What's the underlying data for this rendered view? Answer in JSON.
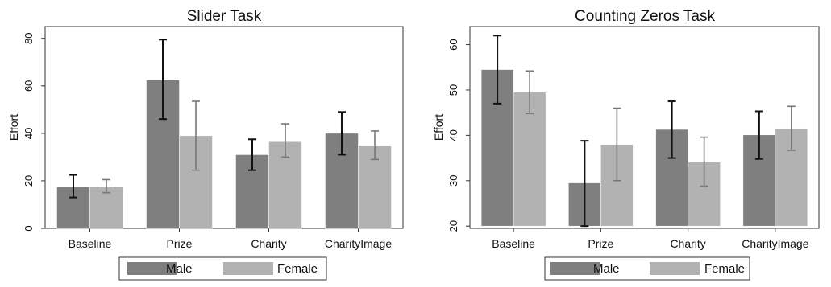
{
  "colors": {
    "male": "#7f7f7f",
    "female": "#b2b2b2",
    "male_err": "#111111",
    "female_err": "#777777",
    "frame": "#333333"
  },
  "chart_data": [
    {
      "type": "bar",
      "title": "Slider Task",
      "ylabel": "Effort",
      "xlabel": "",
      "categories": [
        "Baseline",
        "Prize",
        "Charity",
        "CharityImage"
      ],
      "ylim": [
        0,
        85
      ],
      "yticks": [
        0,
        20,
        40,
        60,
        80
      ],
      "grid": false,
      "legend_position": "bottom",
      "series": [
        {
          "name": "Male",
          "values": [
            17.5,
            62.5,
            31,
            40
          ],
          "err_low": [
            13,
            46,
            24.5,
            31
          ],
          "err_high": [
            22.5,
            79.5,
            37.5,
            49
          ]
        },
        {
          "name": "Female",
          "values": [
            17.5,
            39,
            36.5,
            35
          ],
          "err_low": [
            15,
            24.5,
            30,
            29
          ],
          "err_high": [
            20.5,
            53.5,
            44,
            41
          ]
        }
      ]
    },
    {
      "type": "bar",
      "title": "Counting Zeros Task",
      "ylabel": "Effort",
      "xlabel": "",
      "categories": [
        "Baseline",
        "Prize",
        "Charity",
        "CharityImage"
      ],
      "ylim": [
        19.5,
        64
      ],
      "yticks": [
        20,
        30,
        40,
        50,
        60
      ],
      "grid": false,
      "legend_position": "bottom",
      "series": [
        {
          "name": "Male",
          "values": [
            54.5,
            29.5,
            41.3,
            40.1
          ],
          "err_low": [
            47,
            20,
            35,
            34.8
          ],
          "err_high": [
            62,
            38.8,
            47.5,
            45.3
          ]
        },
        {
          "name": "Female",
          "values": [
            49.5,
            38,
            34.1,
            41.5
          ],
          "err_low": [
            44.8,
            30,
            28.8,
            36.7
          ],
          "err_high": [
            54.2,
            46,
            39.6,
            46.4
          ]
        }
      ]
    }
  ]
}
